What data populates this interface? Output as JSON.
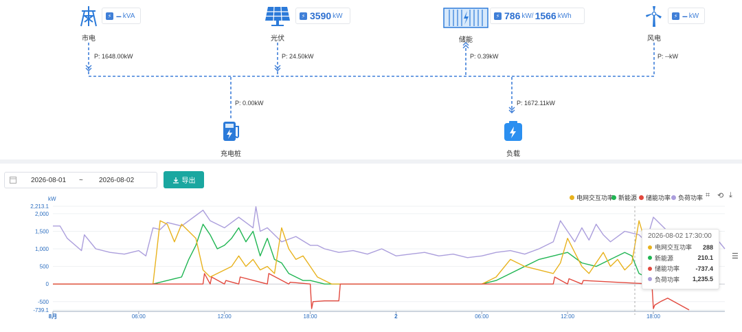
{
  "topology": {
    "grid": {
      "label": "市电",
      "value": "–",
      "unit": "kVA",
      "power": "P: 1648.00kW"
    },
    "pv": {
      "label": "光伏",
      "value": "3590",
      "unit": "kW",
      "power": "P: 24.50kW"
    },
    "storage": {
      "label": "储能",
      "value": "786",
      "unit": "kW/",
      "value2": "1566",
      "unit2": "kWh",
      "power": "P: 0.39kW"
    },
    "wind": {
      "label": "风电",
      "value": "–",
      "unit": "kW",
      "power": "P: --kW"
    },
    "charger": {
      "label": "充电桩",
      "power": "P: 0.00kW"
    },
    "load": {
      "label": "负载",
      "power": "P: 1672.11kW"
    }
  },
  "toolbar": {
    "start_date": "2026-08-01",
    "separator": "~",
    "end_date": "2026-08-02",
    "export_label": "导出"
  },
  "icons": {
    "grid": "transmission-tower-icon",
    "pv": "solar-panel-icon",
    "storage": "battery-container-icon",
    "wind": "wind-turbine-icon",
    "charger": "ev-charger-icon",
    "load": "load-battery-icon",
    "calendar": "calendar-icon",
    "export": "download-icon"
  },
  "colors": {
    "grid": "#e8b21d",
    "renewable": "#1fb552",
    "storage": "#e2483d",
    "load": "#ab9edc",
    "accent": "#1aa7a0",
    "line": "#3f7fd8"
  },
  "chart_data": {
    "type": "line",
    "ylabel": "kW",
    "ylim": [
      -739.1,
      2213.1
    ],
    "yticks": [
      "2,213.1",
      "2,000",
      "1,500",
      "1,000",
      "500",
      "0",
      "-500",
      "-739.1"
    ],
    "xticks": [
      "8月",
      "06:00",
      "12:00",
      "18:00",
      "2",
      "06:00",
      "12:00",
      "18:00"
    ],
    "x_hours_ticks": [
      0,
      6,
      12,
      18,
      24,
      30,
      36,
      42
    ],
    "legend": [
      "电网交互功率",
      "新能源",
      "储能功率",
      "负荷功率"
    ],
    "series": [
      {
        "name": "电网交互功率",
        "color": "#e8b21d",
        "x": [
          0,
          6,
          6.5,
          7,
          7.2,
          7.5,
          8,
          8.3,
          8.5,
          9,
          9.5,
          10,
          10.5,
          11,
          11.5,
          12,
          12.5,
          13,
          13.5,
          14,
          14.5,
          15,
          15.5,
          16,
          16.5,
          17,
          17.5,
          18,
          18.5,
          19,
          19.5,
          20,
          30,
          31,
          32,
          33,
          34,
          35,
          35.5,
          36,
          36.5,
          37,
          37.5,
          38,
          38.5,
          39,
          39.5,
          40,
          40.5,
          41,
          41.5,
          42,
          43,
          44.5
        ],
        "y": [
          0,
          0,
          0,
          0,
          700,
          1800,
          1700,
          1400,
          1200,
          1700,
          1500,
          1300,
          400,
          200,
          300,
          400,
          500,
          800,
          500,
          700,
          400,
          500,
          300,
          1600,
          1000,
          700,
          800,
          500,
          200,
          100,
          0,
          0,
          0,
          200,
          700,
          500,
          400,
          300,
          600,
          1300,
          900,
          500,
          300,
          600,
          900,
          500,
          700,
          400,
          600,
          1800,
          1100,
          900,
          300,
          288
        ]
      },
      {
        "name": "新能源",
        "color": "#1fb552",
        "x": [
          0,
          6,
          6.5,
          7,
          8,
          9,
          9.5,
          10,
          10.5,
          11,
          11.5,
          12,
          12.5,
          13,
          13.5,
          14,
          14.5,
          15,
          15.5,
          16,
          16.5,
          17,
          17.5,
          18,
          18.5,
          19,
          19.5,
          20,
          30,
          31,
          32,
          33,
          34,
          35,
          36,
          37,
          38,
          39,
          40,
          40.5,
          41,
          41.5,
          42,
          43,
          44.5
        ],
        "y": [
          0,
          0,
          0,
          0,
          100,
          200,
          700,
          1100,
          1700,
          1400,
          1000,
          1100,
          1300,
          1600,
          1200,
          1500,
          800,
          1300,
          700,
          600,
          300,
          200,
          100,
          100,
          50,
          0,
          0,
          0,
          0,
          100,
          300,
          500,
          700,
          800,
          900,
          600,
          500,
          700,
          900,
          800,
          300,
          200,
          100,
          210.1,
          210.1
        ]
      },
      {
        "name": "储能功率",
        "color": "#e2483d",
        "x": [
          0,
          10.5,
          10.6,
          11,
          11.1,
          12,
          12.1,
          13,
          13.1,
          15,
          15.1,
          16.5,
          16.6,
          18,
          18.1,
          18.2,
          19,
          20,
          20.1,
          35,
          35.1,
          36,
          36.1,
          37,
          37.1,
          41.9,
          42,
          42.1,
          42.5,
          43,
          44.5
        ],
        "y": [
          0,
          0,
          300,
          0,
          200,
          0,
          100,
          0,
          200,
          0,
          300,
          0,
          50,
          0,
          -700,
          -500,
          -480,
          -480,
          0,
          0,
          200,
          0,
          150,
          0,
          100,
          0,
          -700,
          -600,
          -500,
          -400,
          -737.4
        ]
      },
      {
        "name": "负荷功率",
        "color": "#ab9edc",
        "x": [
          0,
          0.5,
          1,
          2,
          2.2,
          3,
          4,
          5,
          6,
          6.5,
          7,
          7.5,
          8,
          9,
          10,
          10.5,
          11,
          11.5,
          12,
          12.5,
          13,
          13.5,
          14,
          14.2,
          14.5,
          15,
          16,
          17,
          18,
          18.5,
          19,
          20,
          21,
          22,
          23,
          24,
          25,
          26,
          27,
          28,
          29,
          30,
          31,
          32,
          33,
          34,
          35,
          35.5,
          36,
          36.5,
          37,
          37.5,
          38,
          38.5,
          39,
          40,
          41,
          41.5,
          42,
          43,
          44,
          44.5,
          45,
          46,
          47
        ],
        "y": [
          1650,
          1650,
          1300,
          950,
          1400,
          1000,
          900,
          850,
          950,
          800,
          1600,
          1550,
          1750,
          1650,
          1950,
          2100,
          1800,
          1700,
          1600,
          1750,
          1900,
          1750,
          1600,
          2200,
          1500,
          1600,
          1200,
          1350,
          1100,
          1100,
          1000,
          900,
          950,
          850,
          1000,
          800,
          850,
          900,
          800,
          850,
          750,
          800,
          900,
          950,
          850,
          1000,
          1200,
          1800,
          1500,
          1200,
          1600,
          1250,
          1700,
          1400,
          1200,
          1500,
          1400,
          1200,
          1900,
          1500,
          1300,
          1235.5,
          1300,
          1500,
          1000
        ]
      }
    ]
  },
  "tooltip": {
    "title": "2026-08-02 17:30:00",
    "rows": [
      {
        "name": "电网交互功率",
        "value": "288",
        "color": "#e8b21d"
      },
      {
        "name": "新能源",
        "value": "210.1",
        "color": "#1fb552"
      },
      {
        "name": "储能功率",
        "value": "-737.4",
        "color": "#e2483d"
      },
      {
        "name": "负荷功率",
        "value": "1,235.5",
        "color": "#ab9edc"
      }
    ]
  }
}
